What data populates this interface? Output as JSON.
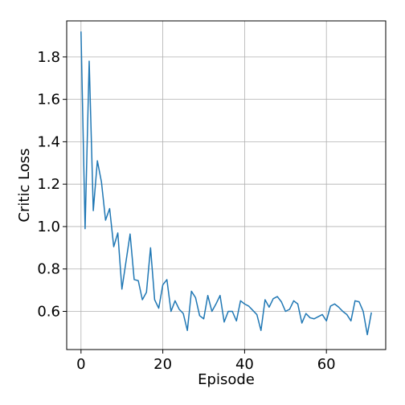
{
  "chart_data": {
    "type": "line",
    "title": "",
    "xlabel": "Episode",
    "ylabel": "Critic Loss",
    "xlim": [
      -3.5,
      74.5
    ],
    "ylim": [
      0.42,
      1.97
    ],
    "xticks": [
      0,
      20,
      40,
      60
    ],
    "yticks": [
      0.6,
      0.8,
      1.0,
      1.2,
      1.4,
      1.6,
      1.8
    ],
    "xtick_labels": [
      "0",
      "20",
      "40",
      "60"
    ],
    "ytick_labels": [
      "0.6",
      "0.8",
      "1.0",
      "1.2",
      "1.4",
      "1.6",
      "1.8"
    ],
    "grid": true,
    "line_color": "#1f77b4",
    "series": [
      {
        "x": [
          0,
          1,
          2,
          3,
          4,
          5,
          6,
          7,
          8,
          9,
          10,
          11,
          12,
          13,
          14,
          15,
          16,
          17,
          18,
          19,
          20,
          21,
          22,
          23,
          24,
          25,
          26,
          27,
          28,
          29,
          30,
          31,
          32,
          33,
          34,
          35,
          36,
          37,
          38,
          39,
          40,
          41,
          42,
          43,
          44,
          45,
          46,
          47,
          48,
          49,
          50,
          51,
          52,
          53,
          54,
          55,
          56,
          57,
          58,
          59,
          60,
          61,
          62,
          63,
          64,
          65,
          66,
          67,
          68,
          69,
          70,
          71
        ],
        "values": [
          1.92,
          0.99,
          1.78,
          1.075,
          1.31,
          1.21,
          1.03,
          1.085,
          0.905,
          0.97,
          0.705,
          0.835,
          0.965,
          0.75,
          0.745,
          0.655,
          0.69,
          0.9,
          0.655,
          0.615,
          0.725,
          0.75,
          0.6,
          0.65,
          0.61,
          0.59,
          0.51,
          0.695,
          0.665,
          0.58,
          0.565,
          0.675,
          0.6,
          0.635,
          0.675,
          0.55,
          0.6,
          0.6,
          0.555,
          0.65,
          0.635,
          0.625,
          0.605,
          0.585,
          0.51,
          0.655,
          0.62,
          0.66,
          0.67,
          0.645,
          0.6,
          0.61,
          0.65,
          0.635,
          0.545,
          0.59,
          0.57,
          0.565,
          0.575,
          0.585,
          0.555,
          0.625,
          0.635,
          0.62,
          0.6,
          0.585,
          0.555,
          0.65,
          0.645,
          0.6,
          0.49,
          0.595
        ]
      }
    ]
  }
}
